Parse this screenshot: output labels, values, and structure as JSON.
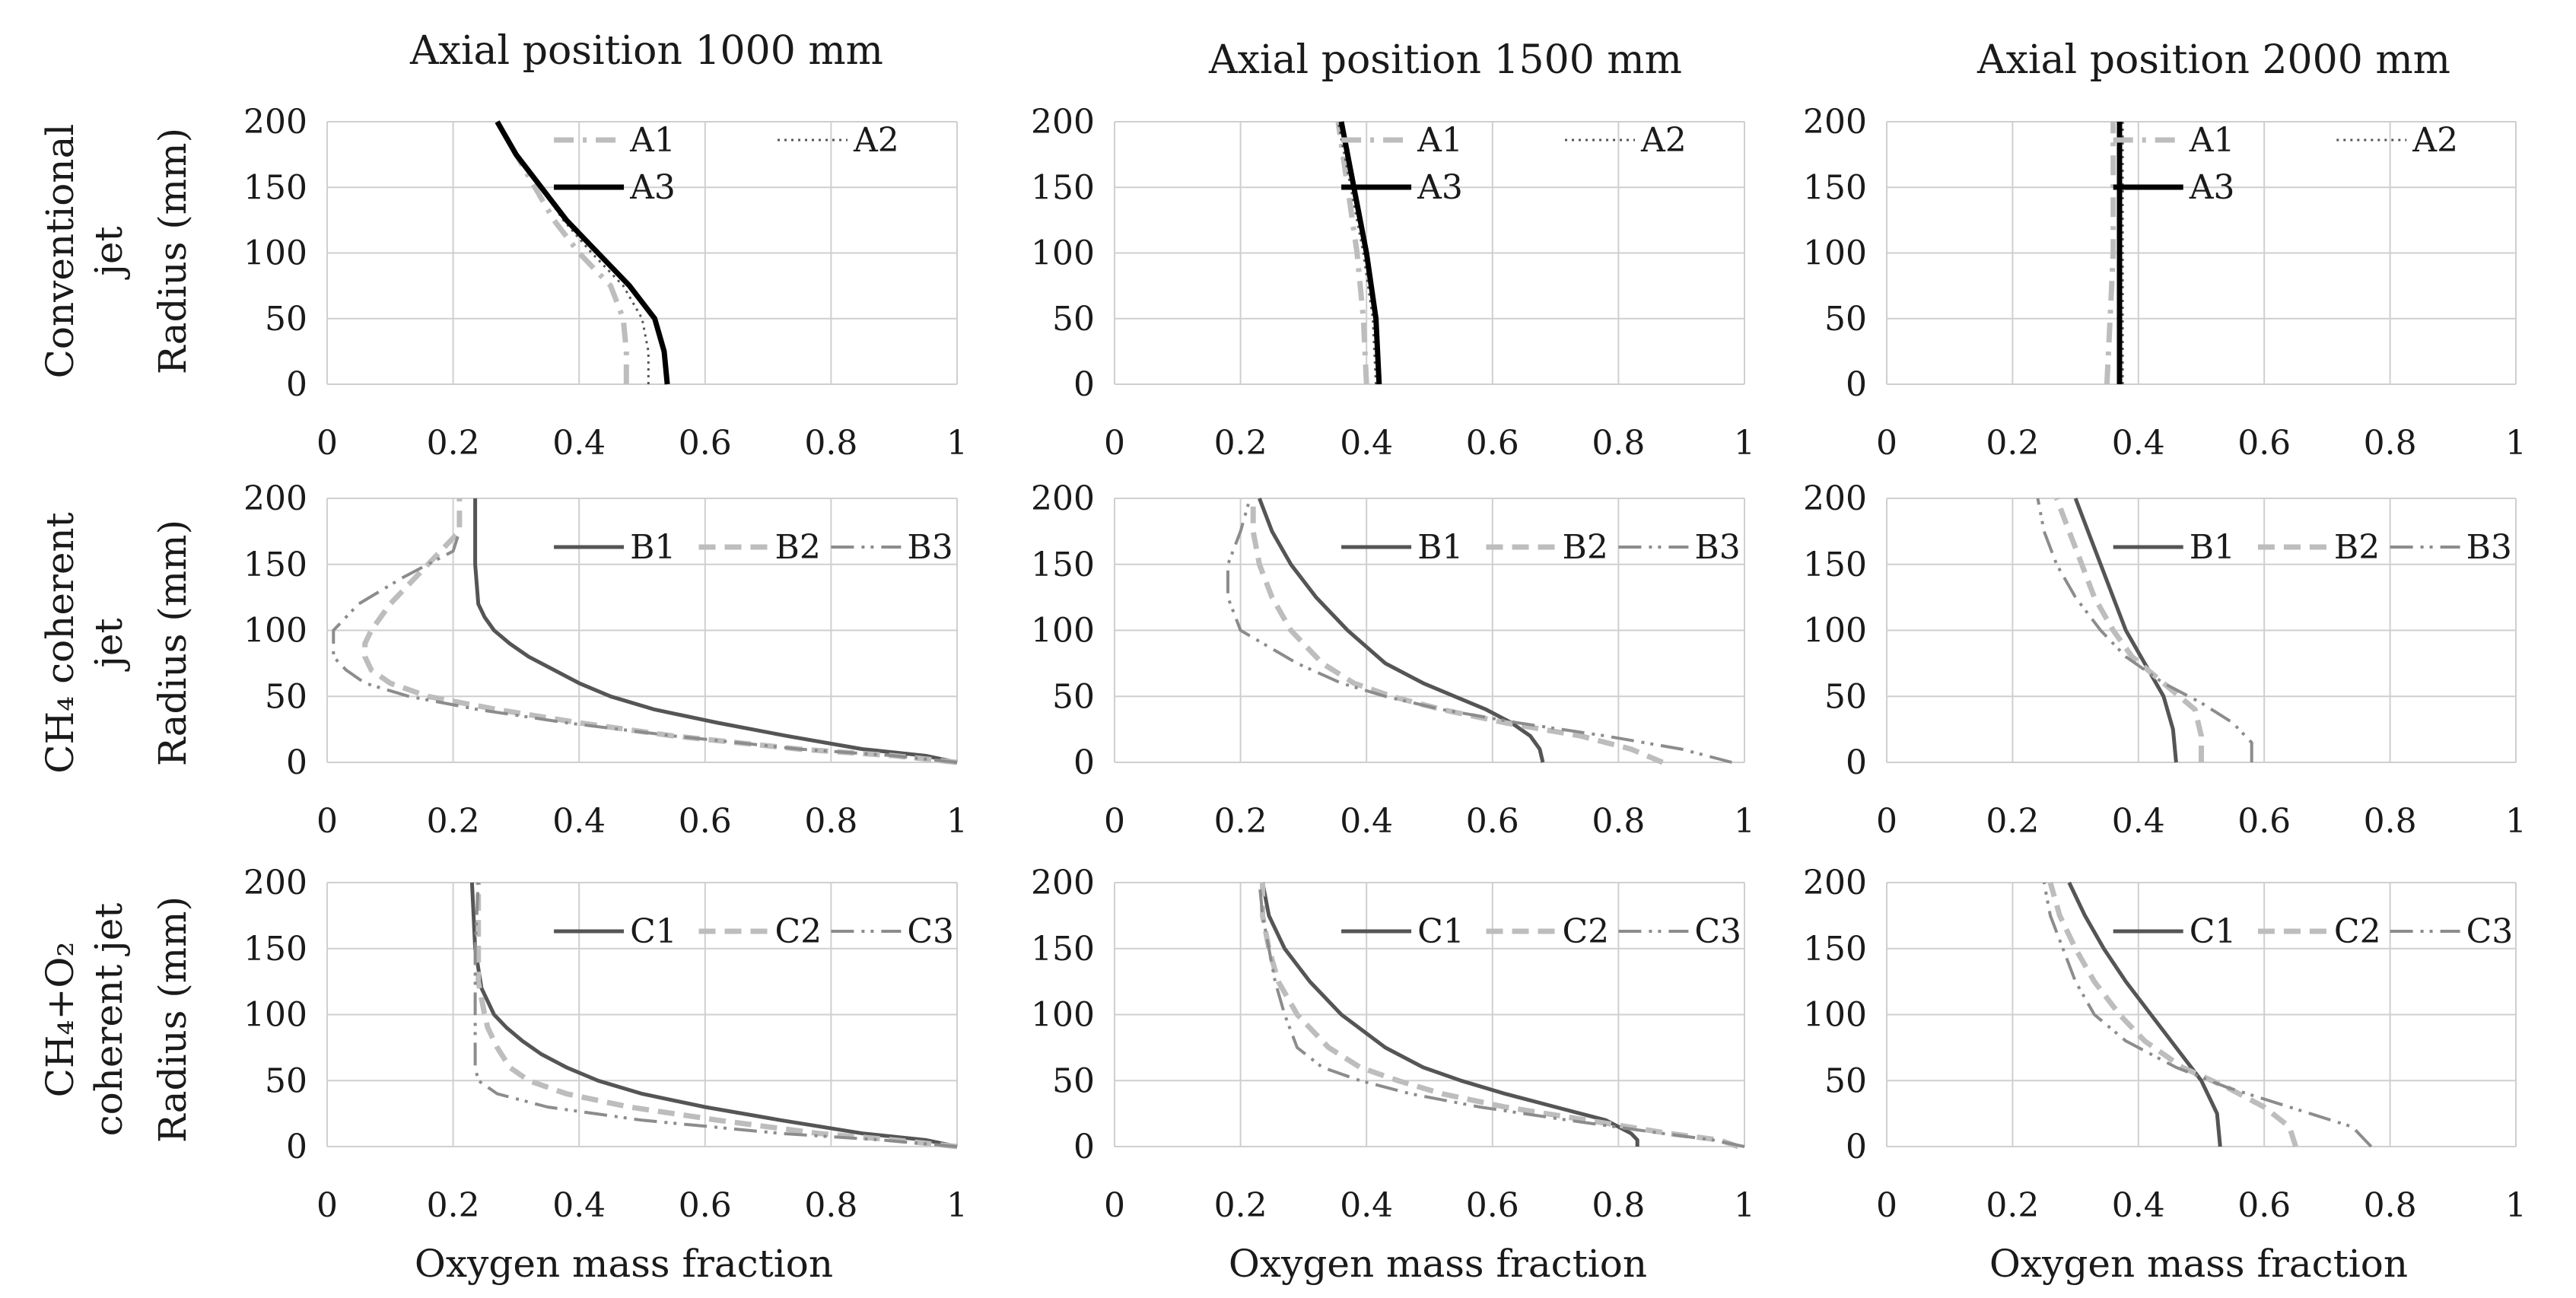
{
  "figure": {
    "col_titles": [
      "Axial position 1000 mm",
      "Axial position 1500 mm",
      "Axial position 2000 mm"
    ],
    "row_labels": [
      {
        "lines": [
          "Conventional",
          "jet"
        ],
        "radius": "Radius (mm)"
      },
      {
        "lines": [
          "CH₄ coherent",
          "jet"
        ],
        "radius": "Radius (mm)"
      },
      {
        "lines": [
          "CH₄+O₂",
          "coherent jet"
        ],
        "radius": "Radius (mm)"
      }
    ],
    "x_axis_label": "Oxygen mass fraction",
    "colors": {
      "solid_dark": "#000000",
      "solid_gray": "#555555",
      "dash_light": "#bdbdbd",
      "dashdot_gray": "#8c8c8c",
      "dotdot_dark": "#3a3a3a",
      "dotted": "#555555",
      "grid": "#cfcfcf"
    }
  },
  "chart_data": [
    {
      "type": "line",
      "row": 0,
      "col": 0,
      "title": "Axial position 1000 mm",
      "xlabel": "Oxygen mass fraction",
      "ylabel": "Radius (mm)",
      "xlim": [
        0,
        1
      ],
      "ylim": [
        0,
        200
      ],
      "xticks": [
        "0",
        "0.2",
        "0.4",
        "0.6",
        "0.8",
        "1"
      ],
      "yticks": [
        "0",
        "50",
        "100",
        "150",
        "200"
      ],
      "series": [
        {
          "name": "A1",
          "style": "dashdot_light",
          "y": [
            0,
            25,
            50,
            75,
            100,
            125,
            150,
            175,
            200
          ],
          "x": [
            0.475,
            0.475,
            0.47,
            0.45,
            0.4,
            0.36,
            0.33,
            0.3,
            0.27
          ]
        },
        {
          "name": "A2",
          "style": "dotted",
          "y": [
            0,
            25,
            50,
            75,
            100,
            125,
            150,
            175,
            200
          ],
          "x": [
            0.51,
            0.51,
            0.5,
            0.47,
            0.42,
            0.375,
            0.34,
            0.3,
            0.27
          ]
        },
        {
          "name": "A3",
          "style": "solid_dark",
          "y": [
            0,
            25,
            50,
            75,
            100,
            125,
            150,
            175,
            200
          ],
          "x": [
            0.54,
            0.535,
            0.52,
            0.48,
            0.43,
            0.38,
            0.34,
            0.3,
            0.27
          ]
        }
      ]
    },
    {
      "type": "line",
      "row": 0,
      "col": 1,
      "title": "Axial position 1500 mm",
      "xlabel": "Oxygen mass fraction",
      "ylabel": "Radius (mm)",
      "xlim": [
        0,
        1
      ],
      "ylim": [
        0,
        200
      ],
      "xticks": [
        "0",
        "0.2",
        "0.4",
        "0.6",
        "0.8",
        "1"
      ],
      "yticks": [
        "0",
        "50",
        "100",
        "150",
        "200"
      ],
      "series": [
        {
          "name": "A1",
          "style": "dashdot_light",
          "y": [
            0,
            50,
            100,
            150,
            200
          ],
          "x": [
            0.4,
            0.395,
            0.385,
            0.37,
            0.355
          ]
        },
        {
          "name": "A2",
          "style": "dotted",
          "y": [
            0,
            50,
            100,
            150,
            200
          ],
          "x": [
            0.415,
            0.41,
            0.395,
            0.375,
            0.355
          ]
        },
        {
          "name": "A3",
          "style": "solid_dark",
          "y": [
            0,
            50,
            100,
            150,
            200
          ],
          "x": [
            0.42,
            0.415,
            0.4,
            0.38,
            0.36
          ]
        }
      ]
    },
    {
      "type": "line",
      "row": 0,
      "col": 2,
      "title": "Axial position 2000 mm",
      "xlabel": "Oxygen mass fraction",
      "ylabel": "Radius (mm)",
      "xlim": [
        0,
        1
      ],
      "ylim": [
        0,
        200
      ],
      "xticks": [
        "0",
        "0.2",
        "0.4",
        "0.6",
        "0.8",
        "1"
      ],
      "yticks": [
        "0",
        "50",
        "100",
        "150",
        "200"
      ],
      "series": [
        {
          "name": "A1",
          "style": "dashdot_light",
          "y": [
            0,
            50,
            100,
            150,
            200
          ],
          "x": [
            0.35,
            0.355,
            0.36,
            0.36,
            0.36
          ]
        },
        {
          "name": "A2",
          "style": "dotted",
          "y": [
            0,
            50,
            100,
            150,
            200
          ],
          "x": [
            0.375,
            0.375,
            0.375,
            0.375,
            0.375
          ]
        },
        {
          "name": "A3",
          "style": "solid_dark",
          "y": [
            0,
            50,
            100,
            150,
            200
          ],
          "x": [
            0.37,
            0.37,
            0.37,
            0.37,
            0.37
          ]
        }
      ]
    },
    {
      "type": "line",
      "row": 1,
      "col": 0,
      "title": "Axial position 1000 mm",
      "xlabel": "Oxygen mass fraction",
      "ylabel": "Radius (mm)",
      "xlim": [
        0,
        1
      ],
      "ylim": [
        0,
        200
      ],
      "xticks": [
        "0",
        "0.2",
        "0.4",
        "0.6",
        "0.8",
        "1"
      ],
      "yticks": [
        "0",
        "50",
        "100",
        "150",
        "200"
      ],
      "series": [
        {
          "name": "B1",
          "style": "solid_gray",
          "y": [
            0,
            5,
            10,
            20,
            30,
            40,
            50,
            60,
            70,
            80,
            90,
            100,
            110,
            120,
            150,
            200
          ],
          "x": [
            1,
            0.95,
            0.85,
            0.73,
            0.62,
            0.52,
            0.45,
            0.4,
            0.36,
            0.32,
            0.29,
            0.265,
            0.25,
            0.24,
            0.235,
            0.235
          ]
        },
        {
          "name": "B2",
          "style": "dash_light",
          "y": [
            0,
            5,
            10,
            20,
            30,
            40,
            50,
            60,
            70,
            80,
            90,
            100,
            120,
            150,
            175,
            200
          ],
          "x": [
            1,
            0.9,
            0.75,
            0.55,
            0.4,
            0.27,
            0.16,
            0.1,
            0.07,
            0.06,
            0.06,
            0.07,
            0.1,
            0.16,
            0.21,
            0.21
          ]
        },
        {
          "name": "B3",
          "style": "dashdot_gray",
          "y": [
            0,
            5,
            10,
            20,
            30,
            40,
            50,
            60,
            70,
            80,
            90,
            100,
            120,
            140,
            160,
            175
          ],
          "x": [
            1,
            0.9,
            0.75,
            0.55,
            0.38,
            0.24,
            0.13,
            0.06,
            0.03,
            0.01,
            0.01,
            0.01,
            0.05,
            0.12,
            0.2,
            0.21
          ]
        }
      ]
    },
    {
      "type": "line",
      "row": 1,
      "col": 1,
      "title": "Axial position 1500 mm",
      "xlabel": "Oxygen mass fraction",
      "ylabel": "Radius (mm)",
      "xlim": [
        0,
        1
      ],
      "ylim": [
        0,
        200
      ],
      "xticks": [
        "0",
        "0.2",
        "0.4",
        "0.6",
        "0.8",
        "1"
      ],
      "yticks": [
        "0",
        "50",
        "100",
        "150",
        "200"
      ],
      "series": [
        {
          "name": "B1",
          "style": "solid_gray",
          "y": [
            0,
            10,
            20,
            30,
            40,
            50,
            60,
            75,
            100,
            125,
            150,
            175,
            200
          ],
          "x": [
            0.68,
            0.675,
            0.66,
            0.63,
            0.59,
            0.54,
            0.49,
            0.43,
            0.37,
            0.32,
            0.28,
            0.25,
            0.23
          ]
        },
        {
          "name": "B2",
          "style": "dash_light",
          "y": [
            0,
            10,
            20,
            30,
            40,
            50,
            60,
            75,
            100,
            125,
            150,
            175,
            200
          ],
          "x": [
            0.87,
            0.82,
            0.74,
            0.62,
            0.52,
            0.44,
            0.38,
            0.33,
            0.28,
            0.25,
            0.23,
            0.22,
            0.22
          ]
        },
        {
          "name": "B3",
          "style": "dashdot_gray",
          "y": [
            0,
            10,
            20,
            30,
            40,
            50,
            60,
            75,
            100,
            125,
            150,
            175,
            200
          ],
          "x": [
            0.98,
            0.9,
            0.78,
            0.64,
            0.52,
            0.43,
            0.36,
            0.29,
            0.2,
            0.18,
            0.18,
            0.2,
            0.215
          ]
        }
      ]
    },
    {
      "type": "line",
      "row": 1,
      "col": 2,
      "title": "Axial position 2000 mm",
      "xlabel": "Oxygen mass fraction",
      "ylabel": "Radius (mm)",
      "xlim": [
        0,
        1
      ],
      "ylim": [
        0,
        200
      ],
      "xticks": [
        "0",
        "0.2",
        "0.4",
        "0.6",
        "0.8",
        "1"
      ],
      "yticks": [
        "0",
        "50",
        "100",
        "150",
        "200"
      ],
      "series": [
        {
          "name": "B1",
          "style": "solid_gray",
          "y": [
            0,
            25,
            50,
            75,
            100,
            125,
            150,
            175,
            200
          ],
          "x": [
            0.46,
            0.455,
            0.44,
            0.41,
            0.38,
            0.36,
            0.34,
            0.32,
            0.3
          ]
        },
        {
          "name": "B2",
          "style": "dash_light",
          "y": [
            0,
            20,
            40,
            60,
            80,
            100,
            125,
            150,
            175,
            200
          ],
          "x": [
            0.5,
            0.5,
            0.49,
            0.44,
            0.39,
            0.36,
            0.33,
            0.31,
            0.29,
            0.27
          ]
        },
        {
          "name": "B3",
          "style": "dashdot_gray",
          "y": [
            0,
            15,
            30,
            45,
            60,
            80,
            100,
            125,
            150,
            175,
            200
          ],
          "x": [
            0.58,
            0.58,
            0.55,
            0.5,
            0.44,
            0.38,
            0.34,
            0.3,
            0.27,
            0.25,
            0.24
          ]
        }
      ]
    },
    {
      "type": "line",
      "row": 2,
      "col": 0,
      "title": "Axial position 1000 mm",
      "xlabel": "Oxygen mass fraction",
      "ylabel": "Radius (mm)",
      "xlim": [
        0,
        1
      ],
      "ylim": [
        0,
        200
      ],
      "xticks": [
        "0",
        "0.2",
        "0.4",
        "0.6",
        "0.8",
        "1"
      ],
      "yticks": [
        "0",
        "50",
        "100",
        "150",
        "200"
      ],
      "series": [
        {
          "name": "C1",
          "style": "solid_gray",
          "y": [
            0,
            5,
            10,
            20,
            30,
            40,
            50,
            60,
            70,
            80,
            90,
            100,
            120,
            150,
            200
          ],
          "x": [
            1,
            0.95,
            0.85,
            0.72,
            0.6,
            0.5,
            0.43,
            0.38,
            0.34,
            0.31,
            0.285,
            0.265,
            0.245,
            0.235,
            0.23
          ]
        },
        {
          "name": "C2",
          "style": "dash_light",
          "y": [
            0,
            5,
            10,
            20,
            30,
            40,
            50,
            60,
            75,
            90,
            100,
            125,
            150,
            200
          ],
          "x": [
            1,
            0.9,
            0.78,
            0.62,
            0.48,
            0.38,
            0.32,
            0.29,
            0.27,
            0.255,
            0.25,
            0.24,
            0.24,
            0.24
          ]
        },
        {
          "name": "C3",
          "style": "dashdot_gray",
          "y": [
            0,
            5,
            10,
            20,
            30,
            40,
            50,
            60,
            80,
            100,
            150,
            200
          ],
          "x": [
            1,
            0.88,
            0.72,
            0.5,
            0.35,
            0.27,
            0.24,
            0.235,
            0.235,
            0.235,
            0.235,
            0.24
          ]
        }
      ]
    },
    {
      "type": "line",
      "row": 2,
      "col": 1,
      "title": "Axial position 1500 mm",
      "xlabel": "Oxygen mass fraction",
      "ylabel": "Radius (mm)",
      "xlim": [
        0,
        1
      ],
      "ylim": [
        0,
        200
      ],
      "xticks": [
        "0",
        "0.2",
        "0.4",
        "0.6",
        "0.8",
        "1"
      ],
      "yticks": [
        "0",
        "50",
        "100",
        "150",
        "200"
      ],
      "series": [
        {
          "name": "C1",
          "style": "solid_gray",
          "y": [
            0,
            5,
            10,
            20,
            30,
            40,
            50,
            60,
            75,
            100,
            125,
            150,
            175,
            200
          ],
          "x": [
            0.83,
            0.83,
            0.82,
            0.78,
            0.7,
            0.62,
            0.55,
            0.49,
            0.43,
            0.36,
            0.31,
            0.27,
            0.245,
            0.235
          ]
        },
        {
          "name": "C2",
          "style": "dash_light",
          "y": [
            0,
            5,
            10,
            20,
            30,
            40,
            50,
            60,
            75,
            100,
            125,
            150,
            175,
            200
          ],
          "x": [
            0.99,
            0.96,
            0.88,
            0.75,
            0.62,
            0.52,
            0.45,
            0.39,
            0.34,
            0.29,
            0.26,
            0.245,
            0.235,
            0.235
          ]
        },
        {
          "name": "C3",
          "style": "dashdot_gray",
          "y": [
            0,
            5,
            10,
            20,
            30,
            40,
            50,
            60,
            75,
            100,
            125,
            150,
            175,
            200
          ],
          "x": [
            1,
            0.95,
            0.87,
            0.72,
            0.58,
            0.47,
            0.39,
            0.33,
            0.29,
            0.27,
            0.255,
            0.245,
            0.235,
            0.23
          ]
        }
      ]
    },
    {
      "type": "line",
      "row": 2,
      "col": 2,
      "title": "Axial position 2000 mm",
      "xlabel": "Oxygen mass fraction",
      "ylabel": "Radius (mm)",
      "xlim": [
        0,
        1
      ],
      "ylim": [
        0,
        200
      ],
      "xticks": [
        "0",
        "0.2",
        "0.4",
        "0.6",
        "0.8",
        "1"
      ],
      "yticks": [
        "0",
        "50",
        "100",
        "150",
        "200"
      ],
      "series": [
        {
          "name": "C1",
          "style": "solid_gray",
          "y": [
            0,
            25,
            50,
            75,
            100,
            125,
            150,
            175,
            200
          ],
          "x": [
            0.53,
            0.525,
            0.5,
            0.46,
            0.42,
            0.38,
            0.345,
            0.315,
            0.29
          ]
        },
        {
          "name": "C2",
          "style": "dash_light",
          "y": [
            0,
            15,
            30,
            45,
            60,
            80,
            100,
            125,
            150,
            175,
            200
          ],
          "x": [
            0.65,
            0.64,
            0.6,
            0.54,
            0.47,
            0.41,
            0.37,
            0.33,
            0.3,
            0.275,
            0.26
          ]
        },
        {
          "name": "C3",
          "style": "dashdot_gray",
          "y": [
            0,
            15,
            30,
            45,
            60,
            80,
            100,
            125,
            150,
            175,
            200
          ],
          "x": [
            0.77,
            0.74,
            0.64,
            0.54,
            0.46,
            0.38,
            0.33,
            0.3,
            0.28,
            0.26,
            0.25
          ]
        }
      ]
    }
  ]
}
